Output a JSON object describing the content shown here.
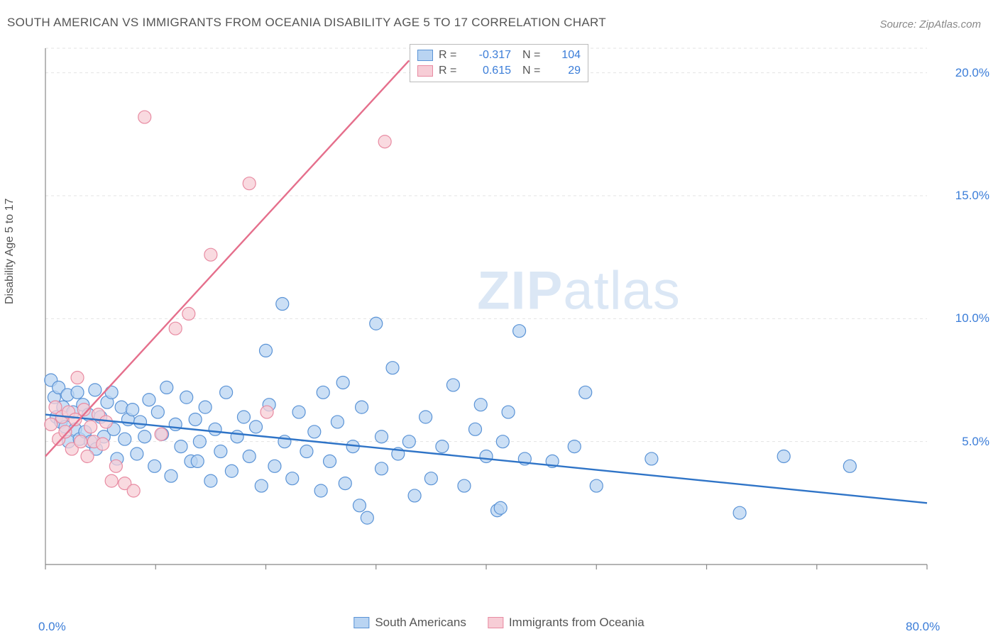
{
  "title": "SOUTH AMERICAN VS IMMIGRANTS FROM OCEANIA DISABILITY AGE 5 TO 17 CORRELATION CHART",
  "source": "Source: ZipAtlas.com",
  "y_axis_label": "Disability Age 5 to 17",
  "watermark": "ZIPatlas",
  "chart": {
    "type": "scatter",
    "xlim": [
      0,
      80
    ],
    "ylim": [
      0,
      21
    ],
    "x_ticks": [
      0,
      10,
      20,
      30,
      40,
      50,
      60,
      70,
      80
    ],
    "x_tick_labels": {
      "0": "0.0%",
      "80": "80.0%"
    },
    "y_ticks": [
      5,
      10,
      15,
      20
    ],
    "y_tick_labels": {
      "5": "5.0%",
      "10": "10.0%",
      "15": "15.0%",
      "20": "20.0%"
    },
    "grid_color": "#e3e3e3",
    "axis_color": "#888888",
    "background_color": "#ffffff",
    "marker_radius": 9,
    "marker_stroke_width": 1.2,
    "trend_line_width": 2.4,
    "series": [
      {
        "name": "South Americans",
        "fill": "#b9d4f2",
        "stroke": "#5a93d6",
        "line_color": "#2f74c7",
        "R": "-0.317",
        "N": "104",
        "trend": {
          "x1": 0,
          "y1": 6.1,
          "x2": 80,
          "y2": 2.5
        },
        "points": [
          [
            0.5,
            7.5
          ],
          [
            0.8,
            6.8
          ],
          [
            1.0,
            6.0
          ],
          [
            1.2,
            7.2
          ],
          [
            1.4,
            5.8
          ],
          [
            1.6,
            6.4
          ],
          [
            1.8,
            5.6
          ],
          [
            2.0,
            6.9
          ],
          [
            2.1,
            5.0
          ],
          [
            2.5,
            6.2
          ],
          [
            2.7,
            5.5
          ],
          [
            2.9,
            7.0
          ],
          [
            3.1,
            5.1
          ],
          [
            3.4,
            6.5
          ],
          [
            3.6,
            5.4
          ],
          [
            3.9,
            6.1
          ],
          [
            4.1,
            5.0
          ],
          [
            4.5,
            7.1
          ],
          [
            4.6,
            4.7
          ],
          [
            5.0,
            6.0
          ],
          [
            5.3,
            5.2
          ],
          [
            5.6,
            6.6
          ],
          [
            6.0,
            7.0
          ],
          [
            6.2,
            5.5
          ],
          [
            6.5,
            4.3
          ],
          [
            6.9,
            6.4
          ],
          [
            7.2,
            5.1
          ],
          [
            7.5,
            5.9
          ],
          [
            7.9,
            6.3
          ],
          [
            8.3,
            4.5
          ],
          [
            8.6,
            5.8
          ],
          [
            9.0,
            5.2
          ],
          [
            9.4,
            6.7
          ],
          [
            9.9,
            4.0
          ],
          [
            10.2,
            6.2
          ],
          [
            10.6,
            5.3
          ],
          [
            11.0,
            7.2
          ],
          [
            11.4,
            3.6
          ],
          [
            11.8,
            5.7
          ],
          [
            12.3,
            4.8
          ],
          [
            12.8,
            6.8
          ],
          [
            13.2,
            4.2
          ],
          [
            13.6,
            5.9
          ],
          [
            14.0,
            5.0
          ],
          [
            14.5,
            6.4
          ],
          [
            15.0,
            3.4
          ],
          [
            15.4,
            5.5
          ],
          [
            15.9,
            4.6
          ],
          [
            16.4,
            7.0
          ],
          [
            16.9,
            3.8
          ],
          [
            17.4,
            5.2
          ],
          [
            18.0,
            6.0
          ],
          [
            18.5,
            4.4
          ],
          [
            19.1,
            5.6
          ],
          [
            19.6,
            3.2
          ],
          [
            20.0,
            8.7
          ],
          [
            20.3,
            6.5
          ],
          [
            20.8,
            4.0
          ],
          [
            21.5,
            10.6
          ],
          [
            21.7,
            5.0
          ],
          [
            22.4,
            3.5
          ],
          [
            23.0,
            6.2
          ],
          [
            23.7,
            4.6
          ],
          [
            24.4,
            5.4
          ],
          [
            25.0,
            3.0
          ],
          [
            25.2,
            7.0
          ],
          [
            25.8,
            4.2
          ],
          [
            26.5,
            5.8
          ],
          [
            27.0,
            7.4
          ],
          [
            27.2,
            3.3
          ],
          [
            27.9,
            4.8
          ],
          [
            28.5,
            2.4
          ],
          [
            28.7,
            6.4
          ],
          [
            29.2,
            1.9
          ],
          [
            30.0,
            9.8
          ],
          [
            30.5,
            3.9
          ],
          [
            31.5,
            8.0
          ],
          [
            32.0,
            4.5
          ],
          [
            33.0,
            5.0
          ],
          [
            33.5,
            2.8
          ],
          [
            34.5,
            6.0
          ],
          [
            35.0,
            3.5
          ],
          [
            36.0,
            4.8
          ],
          [
            37.0,
            7.3
          ],
          [
            38.0,
            3.2
          ],
          [
            39.0,
            5.5
          ],
          [
            39.5,
            6.5
          ],
          [
            40.0,
            4.4
          ],
          [
            41.0,
            2.2
          ],
          [
            41.3,
            2.3
          ],
          [
            41.5,
            5.0
          ],
          [
            42.0,
            6.2
          ],
          [
            43.0,
            9.5
          ],
          [
            43.5,
            4.3
          ],
          [
            46.0,
            4.2
          ],
          [
            48.0,
            4.8
          ],
          [
            49.0,
            7.0
          ],
          [
            50.0,
            3.2
          ],
          [
            55.0,
            4.3
          ],
          [
            63.0,
            2.1
          ],
          [
            67.0,
            4.4
          ],
          [
            73.0,
            4.0
          ],
          [
            30.5,
            5.2
          ],
          [
            13.8,
            4.2
          ]
        ]
      },
      {
        "name": "Immigrants from Oceania",
        "fill": "#f7cdd6",
        "stroke": "#e88ba2",
        "line_color": "#e56f8c",
        "R": "0.615",
        "N": "29",
        "trend": {
          "x1": 0,
          "y1": 4.4,
          "x2": 33,
          "y2": 20.5
        },
        "points": [
          [
            0.5,
            5.7
          ],
          [
            0.9,
            6.4
          ],
          [
            1.2,
            5.1
          ],
          [
            1.5,
            6.0
          ],
          [
            1.8,
            5.4
          ],
          [
            2.1,
            6.2
          ],
          [
            2.4,
            4.7
          ],
          [
            2.7,
            5.9
          ],
          [
            2.9,
            7.6
          ],
          [
            3.2,
            5.0
          ],
          [
            3.5,
            6.3
          ],
          [
            3.8,
            4.4
          ],
          [
            4.1,
            5.6
          ],
          [
            4.4,
            5.0
          ],
          [
            4.8,
            6.1
          ],
          [
            5.2,
            4.9
          ],
          [
            5.5,
            5.8
          ],
          [
            6.0,
            3.4
          ],
          [
            6.4,
            4.0
          ],
          [
            7.2,
            3.3
          ],
          [
            8.0,
            3.0
          ],
          [
            9.0,
            18.2
          ],
          [
            10.5,
            5.3
          ],
          [
            11.8,
            9.6
          ],
          [
            13.0,
            10.2
          ],
          [
            15.0,
            12.6
          ],
          [
            18.5,
            15.5
          ],
          [
            20.1,
            6.2
          ],
          [
            30.8,
            17.2
          ]
        ]
      }
    ]
  },
  "legend_bottom": [
    {
      "swatch": "blue",
      "label": "South Americans"
    },
    {
      "swatch": "pink",
      "label": "Immigrants from Oceania"
    }
  ]
}
